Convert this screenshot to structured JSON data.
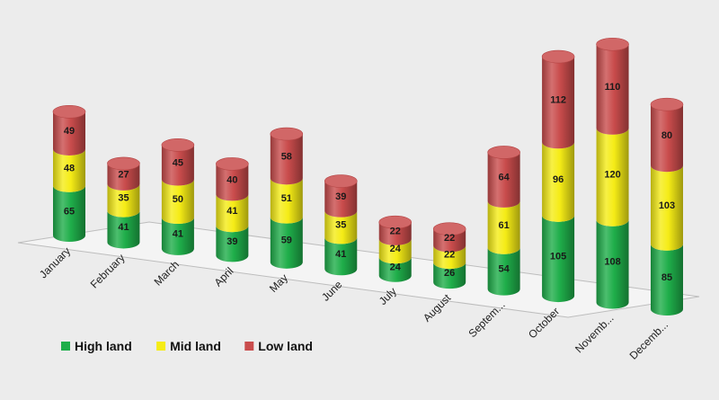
{
  "chart_data": {
    "type": "bar",
    "stacked": true,
    "style": "3d-cylinder",
    "categories": [
      "January",
      "February",
      "March",
      "April",
      "May",
      "June",
      "July",
      "August",
      "Septem...",
      "October",
      "Novemb...",
      "Decemb..."
    ],
    "series": [
      {
        "name": "High land",
        "color": "#1fae4a",
        "values": [
          65,
          41,
          41,
          39,
          59,
          41,
          24,
          26,
          54,
          105,
          108,
          85
        ]
      },
      {
        "name": "Mid land",
        "color": "#f5ec16",
        "values": [
          48,
          35,
          50,
          41,
          51,
          35,
          24,
          22,
          61,
          96,
          120,
          103
        ]
      },
      {
        "name": "Low land",
        "color": "#c94c4c",
        "values": [
          49,
          27,
          45,
          40,
          58,
          39,
          22,
          22,
          64,
          112,
          110,
          80
        ]
      }
    ],
    "legend_position": "bottom-left",
    "grid": false
  }
}
